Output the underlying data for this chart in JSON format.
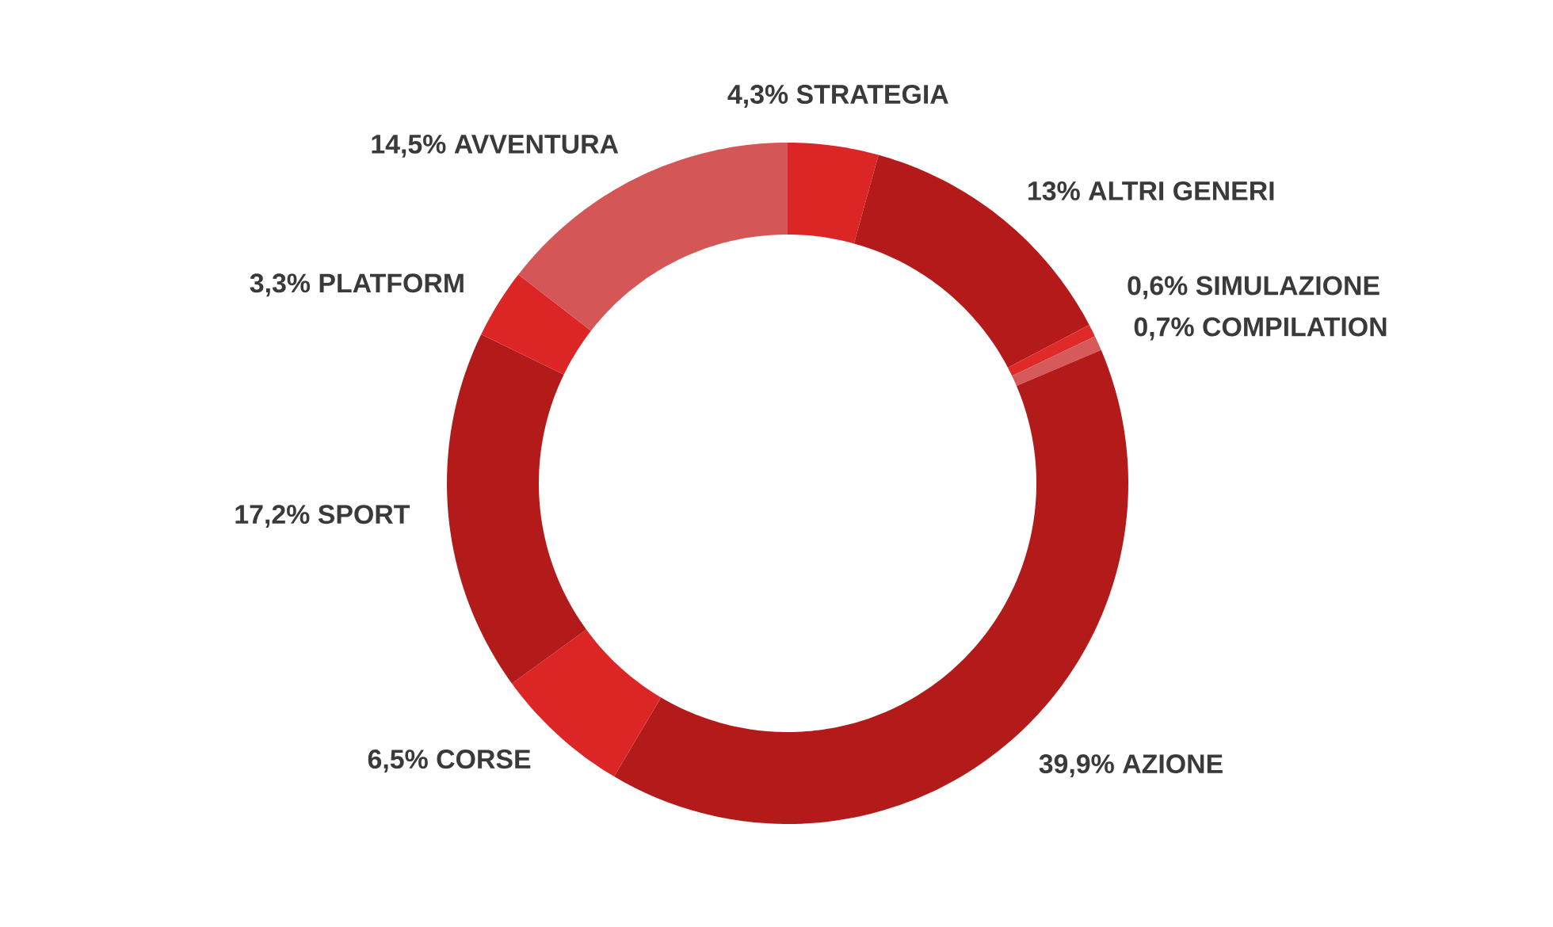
{
  "chart_data": {
    "type": "donut",
    "categories": [
      "STRATEGIA",
      "ALTRI GENERI",
      "SIMULAZIONE",
      "COMPILATION",
      "AZIONE",
      "CORSE",
      "SPORT",
      "PLATFORM",
      "AVVENTURA"
    ],
    "values": [
      4.3,
      13,
      0.6,
      0.7,
      39.9,
      6.5,
      17.2,
      3.3,
      14.5
    ],
    "value_labels": [
      "4,3%",
      "13%",
      "0,6%",
      "0,7%",
      "39,9%",
      "6,5%",
      "17,2%",
      "3,3%",
      "14,5%"
    ],
    "colors": [
      "#dc2626",
      "#b41a1a",
      "#e02a2a",
      "#d65a5a",
      "#b31b1b",
      "#dc2626",
      "#b31b1b",
      "#dc2626",
      "#d45656"
    ]
  }
}
